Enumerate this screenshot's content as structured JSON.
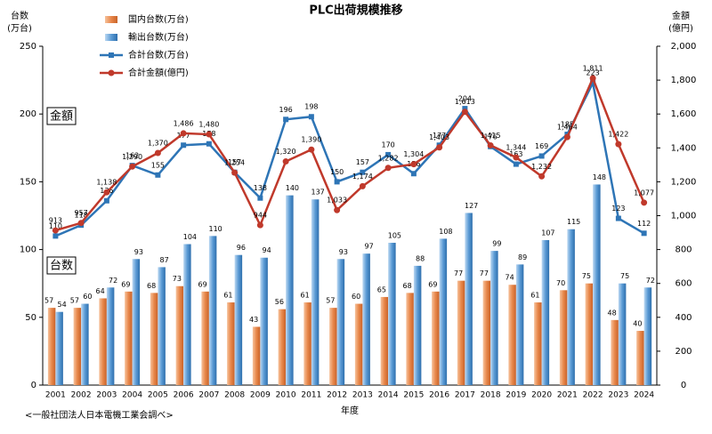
{
  "chart_data": {
    "type": "bar",
    "title": "PLC出荷規模推移",
    "ylabel": [
      "台数",
      "(万台)"
    ],
    "y2label": [
      "金額",
      "(億円)"
    ],
    "xlabel": "年度",
    "source": "<一般社団法人日本電機工業会調べ>",
    "annotations": [
      "金額",
      "台数"
    ],
    "categories": [
      "2001",
      "2002",
      "2003",
      "2004",
      "2005",
      "2006",
      "2007",
      "2008",
      "2009",
      "2010",
      "2011",
      "2012",
      "2013",
      "2014",
      "2015",
      "2016",
      "2017",
      "2018",
      "2019",
      "2020",
      "2021",
      "2022",
      "2023",
      "2024"
    ],
    "series": [
      {
        "name": "国内台数(万台)",
        "type": "bar",
        "color": "#e8874a",
        "values": [
          57,
          57,
          64,
          69,
          68,
          73,
          69,
          61,
          43,
          56,
          61,
          57,
          60,
          65,
          68,
          69,
          77,
          77,
          74,
          61,
          70,
          75,
          48,
          40
        ]
      },
      {
        "name": "輸出台数(万台)",
        "type": "bar",
        "color": "#5b9bd5",
        "values": [
          54,
          60,
          72,
          93,
          87,
          104,
          110,
          96,
          94,
          140,
          137,
          93,
          97,
          105,
          88,
          108,
          127,
          99,
          89,
          107,
          115,
          148,
          75,
          72
        ]
      },
      {
        "name": "合計台数(万台)",
        "type": "line",
        "color": "#2e75b6",
        "values": [
          110,
          118,
          136,
          162,
          155,
          177,
          178,
          157,
          138,
          196,
          198,
          150,
          157,
          170,
          156,
          177,
          204,
          176,
          163,
          169,
          185,
          223,
          123,
          112
        ]
      },
      {
        "name": "合計金額(億円)",
        "type": "line",
        "axis": "y2",
        "color": "#c0392b",
        "values": [
          913,
          957,
          1138,
          1290,
          1370,
          1486,
          1480,
          1254,
          944,
          1320,
          1390,
          1033,
          1174,
          1282,
          1304,
          1403,
          1613,
          1415,
          1344,
          1232,
          1464,
          1811,
          1422,
          1077
        ],
        "value_labels": [
          "913",
          "957",
          "1,138",
          "1,290",
          "1,370",
          "1,486",
          "1,480",
          "1,254",
          "944",
          "1,320",
          "1,390",
          "1,033",
          "1,174",
          "1,282",
          "1,304",
          "1,403",
          "1,613",
          "1,415",
          "1,344",
          "1,232",
          "1,464",
          "1,811",
          "1,422",
          "1,077"
        ]
      }
    ],
    "ylim": [
      0,
      250
    ],
    "yticks": [
      0,
      50,
      100,
      150,
      200,
      250
    ],
    "y2lim": [
      0,
      2000
    ],
    "y2ticks": [
      0,
      200,
      400,
      600,
      800,
      {
        "value": 1000,
        "label": "1,000"
      },
      {
        "value": 1200,
        "label": "1,200"
      },
      {
        "value": 1400,
        "label": "1,400"
      },
      {
        "value": 1600,
        "label": "1,600"
      },
      {
        "value": 1800,
        "label": "1,800"
      },
      {
        "value": 2000,
        "label": "2,000"
      }
    ],
    "grid": false
  }
}
